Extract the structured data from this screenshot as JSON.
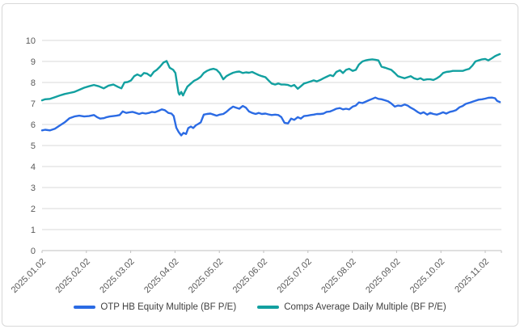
{
  "chart_data": {
    "type": "line",
    "title": "",
    "xlabel": "",
    "ylabel": "",
    "grid": true,
    "legend_position": "bottom",
    "x_unit": "months since 2025.01.02 (tick index; daily data)",
    "x_axis": {
      "tick_labels": [
        "2025.01.02",
        "2025.02.02",
        "2025.03.02",
        "2025.04.02",
        "2025.05.02",
        "2025.06.02",
        "2025.07.02",
        "2025.08.02",
        "2025.09.02",
        "2025.10.02",
        "2025.11.02"
      ],
      "label_rotation_deg": -45
    },
    "y_axis": {
      "min": 0,
      "max": 10,
      "tick_step": 1,
      "tick_labels": [
        "0",
        "1",
        "2",
        "3",
        "4",
        "5",
        "6",
        "7",
        "8",
        "9",
        "10"
      ]
    },
    "style": {
      "grid_color": "#d9d9d9",
      "axis_line_color": "#bfbfbf",
      "axis_label_color": "#595959",
      "legend_text_color": "#404040",
      "frame_border_color": "#d8d8d8",
      "background": "#ffffff"
    },
    "series": [
      {
        "id": "otp-hb",
        "name": "OTP HB Equity Multiple (BF P/E)",
        "color": "#2b6be4",
        "points": [
          [
            0.0,
            5.72
          ],
          [
            0.07,
            5.75
          ],
          [
            0.18,
            5.72
          ],
          [
            0.29,
            5.8
          ],
          [
            0.4,
            5.95
          ],
          [
            0.51,
            6.1
          ],
          [
            0.62,
            6.3
          ],
          [
            0.73,
            6.38
          ],
          [
            0.84,
            6.42
          ],
          [
            0.95,
            6.38
          ],
          [
            1.06,
            6.4
          ],
          [
            1.17,
            6.45
          ],
          [
            1.24,
            6.35
          ],
          [
            1.31,
            6.28
          ],
          [
            1.39,
            6.3
          ],
          [
            1.46,
            6.35
          ],
          [
            1.53,
            6.38
          ],
          [
            1.61,
            6.4
          ],
          [
            1.68,
            6.42
          ],
          [
            1.75,
            6.45
          ],
          [
            1.82,
            6.62
          ],
          [
            1.9,
            6.55
          ],
          [
            1.97,
            6.58
          ],
          [
            2.04,
            6.6
          ],
          [
            2.12,
            6.55
          ],
          [
            2.19,
            6.5
          ],
          [
            2.26,
            6.55
          ],
          [
            2.34,
            6.52
          ],
          [
            2.41,
            6.55
          ],
          [
            2.48,
            6.6
          ],
          [
            2.55,
            6.58
          ],
          [
            2.63,
            6.65
          ],
          [
            2.7,
            6.72
          ],
          [
            2.77,
            6.68
          ],
          [
            2.85,
            6.55
          ],
          [
            2.92,
            6.52
          ],
          [
            2.97,
            6.4
          ],
          [
            3.03,
            5.85
          ],
          [
            3.08,
            5.65
          ],
          [
            3.14,
            5.48
          ],
          [
            3.19,
            5.6
          ],
          [
            3.25,
            5.55
          ],
          [
            3.3,
            5.83
          ],
          [
            3.36,
            5.9
          ],
          [
            3.41,
            5.83
          ],
          [
            3.47,
            5.96
          ],
          [
            3.52,
            6.02
          ],
          [
            3.58,
            6.1
          ],
          [
            3.65,
            6.47
          ],
          [
            3.72,
            6.5
          ],
          [
            3.8,
            6.52
          ],
          [
            3.87,
            6.47
          ],
          [
            3.94,
            6.42
          ],
          [
            4.01,
            6.47
          ],
          [
            4.09,
            6.5
          ],
          [
            4.16,
            6.6
          ],
          [
            4.23,
            6.73
          ],
          [
            4.31,
            6.85
          ],
          [
            4.38,
            6.8
          ],
          [
            4.45,
            6.75
          ],
          [
            4.53,
            6.88
          ],
          [
            4.6,
            6.8
          ],
          [
            4.67,
            6.62
          ],
          [
            4.74,
            6.55
          ],
          [
            4.82,
            6.5
          ],
          [
            4.89,
            6.55
          ],
          [
            4.96,
            6.5
          ],
          [
            5.04,
            6.52
          ],
          [
            5.11,
            6.48
          ],
          [
            5.18,
            6.45
          ],
          [
            5.26,
            6.47
          ],
          [
            5.33,
            6.45
          ],
          [
            5.4,
            6.35
          ],
          [
            5.47,
            6.08
          ],
          [
            5.55,
            6.05
          ],
          [
            5.62,
            6.28
          ],
          [
            5.69,
            6.22
          ],
          [
            5.77,
            6.35
          ],
          [
            5.84,
            6.28
          ],
          [
            5.91,
            6.4
          ],
          [
            5.99,
            6.42
          ],
          [
            6.06,
            6.45
          ],
          [
            6.13,
            6.47
          ],
          [
            6.2,
            6.5
          ],
          [
            6.28,
            6.5
          ],
          [
            6.35,
            6.52
          ],
          [
            6.42,
            6.6
          ],
          [
            6.5,
            6.62
          ],
          [
            6.57,
            6.68
          ],
          [
            6.64,
            6.75
          ],
          [
            6.72,
            6.78
          ],
          [
            6.79,
            6.72
          ],
          [
            6.86,
            6.75
          ],
          [
            6.93,
            6.72
          ],
          [
            7.01,
            6.85
          ],
          [
            7.08,
            6.9
          ],
          [
            7.15,
            7.05
          ],
          [
            7.23,
            7.02
          ],
          [
            7.3,
            7.08
          ],
          [
            7.37,
            7.15
          ],
          [
            7.45,
            7.22
          ],
          [
            7.52,
            7.28
          ],
          [
            7.59,
            7.22
          ],
          [
            7.66,
            7.2
          ],
          [
            7.74,
            7.15
          ],
          [
            7.81,
            7.1
          ],
          [
            7.88,
            7.0
          ],
          [
            7.96,
            6.85
          ],
          [
            8.03,
            6.9
          ],
          [
            8.1,
            6.88
          ],
          [
            8.18,
            6.95
          ],
          [
            8.25,
            6.9
          ],
          [
            8.32,
            6.8
          ],
          [
            8.39,
            6.72
          ],
          [
            8.47,
            6.6
          ],
          [
            8.54,
            6.52
          ],
          [
            8.61,
            6.58
          ],
          [
            8.69,
            6.47
          ],
          [
            8.76,
            6.55
          ],
          [
            8.83,
            6.5
          ],
          [
            8.91,
            6.47
          ],
          [
            8.98,
            6.52
          ],
          [
            9.05,
            6.58
          ],
          [
            9.12,
            6.52
          ],
          [
            9.2,
            6.6
          ],
          [
            9.27,
            6.63
          ],
          [
            9.34,
            6.68
          ],
          [
            9.42,
            6.82
          ],
          [
            9.49,
            6.88
          ],
          [
            9.56,
            6.98
          ],
          [
            9.64,
            7.03
          ],
          [
            9.71,
            7.08
          ],
          [
            9.78,
            7.13
          ],
          [
            9.85,
            7.18
          ],
          [
            9.93,
            7.2
          ],
          [
            10.0,
            7.23
          ],
          [
            10.07,
            7.27
          ],
          [
            10.15,
            7.28
          ],
          [
            10.22,
            7.25
          ],
          [
            10.27,
            7.12
          ],
          [
            10.33,
            7.07
          ]
        ]
      },
      {
        "id": "comps-avg",
        "name": "Comps Average Daily Multiple (BF P/E)",
        "color": "#12a0a0",
        "points": [
          [
            0.0,
            7.15
          ],
          [
            0.07,
            7.2
          ],
          [
            0.18,
            7.22
          ],
          [
            0.29,
            7.3
          ],
          [
            0.4,
            7.38
          ],
          [
            0.51,
            7.45
          ],
          [
            0.62,
            7.5
          ],
          [
            0.73,
            7.55
          ],
          [
            0.84,
            7.65
          ],
          [
            0.95,
            7.75
          ],
          [
            1.06,
            7.82
          ],
          [
            1.17,
            7.88
          ],
          [
            1.28,
            7.82
          ],
          [
            1.39,
            7.72
          ],
          [
            1.5,
            7.85
          ],
          [
            1.61,
            7.9
          ],
          [
            1.72,
            7.78
          ],
          [
            1.79,
            7.72
          ],
          [
            1.86,
            8.0
          ],
          [
            1.93,
            8.02
          ],
          [
            2.01,
            8.1
          ],
          [
            2.08,
            8.3
          ],
          [
            2.15,
            8.38
          ],
          [
            2.23,
            8.3
          ],
          [
            2.3,
            8.45
          ],
          [
            2.37,
            8.42
          ],
          [
            2.45,
            8.3
          ],
          [
            2.52,
            8.5
          ],
          [
            2.59,
            8.6
          ],
          [
            2.66,
            8.75
          ],
          [
            2.74,
            8.95
          ],
          [
            2.81,
            9.02
          ],
          [
            2.88,
            8.7
          ],
          [
            2.96,
            8.6
          ],
          [
            3.01,
            8.45
          ],
          [
            3.05,
            7.9
          ],
          [
            3.08,
            7.5
          ],
          [
            3.1,
            7.42
          ],
          [
            3.14,
            7.55
          ],
          [
            3.18,
            7.38
          ],
          [
            3.23,
            7.6
          ],
          [
            3.28,
            7.8
          ],
          [
            3.36,
            7.95
          ],
          [
            3.43,
            8.08
          ],
          [
            3.5,
            8.15
          ],
          [
            3.58,
            8.27
          ],
          [
            3.65,
            8.45
          ],
          [
            3.72,
            8.55
          ],
          [
            3.8,
            8.62
          ],
          [
            3.87,
            8.65
          ],
          [
            3.94,
            8.6
          ],
          [
            4.01,
            8.45
          ],
          [
            4.09,
            8.15
          ],
          [
            4.16,
            8.3
          ],
          [
            4.23,
            8.38
          ],
          [
            4.31,
            8.46
          ],
          [
            4.38,
            8.5
          ],
          [
            4.45,
            8.52
          ],
          [
            4.53,
            8.45
          ],
          [
            4.6,
            8.48
          ],
          [
            4.67,
            8.46
          ],
          [
            4.74,
            8.5
          ],
          [
            4.82,
            8.42
          ],
          [
            4.89,
            8.35
          ],
          [
            4.96,
            8.3
          ],
          [
            5.04,
            8.25
          ],
          [
            5.11,
            8.1
          ],
          [
            5.18,
            7.95
          ],
          [
            5.26,
            7.9
          ],
          [
            5.33,
            7.95
          ],
          [
            5.4,
            7.9
          ],
          [
            5.47,
            7.9
          ],
          [
            5.55,
            7.88
          ],
          [
            5.62,
            7.82
          ],
          [
            5.69,
            7.88
          ],
          [
            5.77,
            7.7
          ],
          [
            5.84,
            7.82
          ],
          [
            5.91,
            7.95
          ],
          [
            5.99,
            8.0
          ],
          [
            6.06,
            8.05
          ],
          [
            6.13,
            8.1
          ],
          [
            6.2,
            8.05
          ],
          [
            6.28,
            8.12
          ],
          [
            6.35,
            8.2
          ],
          [
            6.42,
            8.27
          ],
          [
            6.5,
            8.35
          ],
          [
            6.57,
            8.3
          ],
          [
            6.64,
            8.5
          ],
          [
            6.72,
            8.58
          ],
          [
            6.79,
            8.45
          ],
          [
            6.86,
            8.6
          ],
          [
            6.93,
            8.65
          ],
          [
            7.01,
            8.55
          ],
          [
            7.08,
            8.6
          ],
          [
            7.15,
            8.85
          ],
          [
            7.23,
            9.0
          ],
          [
            7.3,
            9.05
          ],
          [
            7.37,
            9.08
          ],
          [
            7.45,
            9.1
          ],
          [
            7.52,
            9.08
          ],
          [
            7.59,
            9.05
          ],
          [
            7.66,
            8.75
          ],
          [
            7.74,
            8.7
          ],
          [
            7.81,
            8.65
          ],
          [
            7.88,
            8.6
          ],
          [
            7.96,
            8.45
          ],
          [
            8.03,
            8.3
          ],
          [
            8.1,
            8.25
          ],
          [
            8.18,
            8.2
          ],
          [
            8.25,
            8.25
          ],
          [
            8.32,
            8.3
          ],
          [
            8.39,
            8.2
          ],
          [
            8.47,
            8.15
          ],
          [
            8.54,
            8.2
          ],
          [
            8.61,
            8.12
          ],
          [
            8.69,
            8.15
          ],
          [
            8.76,
            8.15
          ],
          [
            8.83,
            8.12
          ],
          [
            8.91,
            8.2
          ],
          [
            8.98,
            8.3
          ],
          [
            9.05,
            8.45
          ],
          [
            9.12,
            8.5
          ],
          [
            9.2,
            8.52
          ],
          [
            9.27,
            8.55
          ],
          [
            9.34,
            8.55
          ],
          [
            9.42,
            8.55
          ],
          [
            9.49,
            8.55
          ],
          [
            9.56,
            8.6
          ],
          [
            9.64,
            8.65
          ],
          [
            9.71,
            8.8
          ],
          [
            9.78,
            9.0
          ],
          [
            9.85,
            9.05
          ],
          [
            9.93,
            9.1
          ],
          [
            10.0,
            9.12
          ],
          [
            10.07,
            9.05
          ],
          [
            10.15,
            9.15
          ],
          [
            10.22,
            9.25
          ],
          [
            10.27,
            9.3
          ],
          [
            10.33,
            9.35
          ]
        ]
      }
    ]
  }
}
